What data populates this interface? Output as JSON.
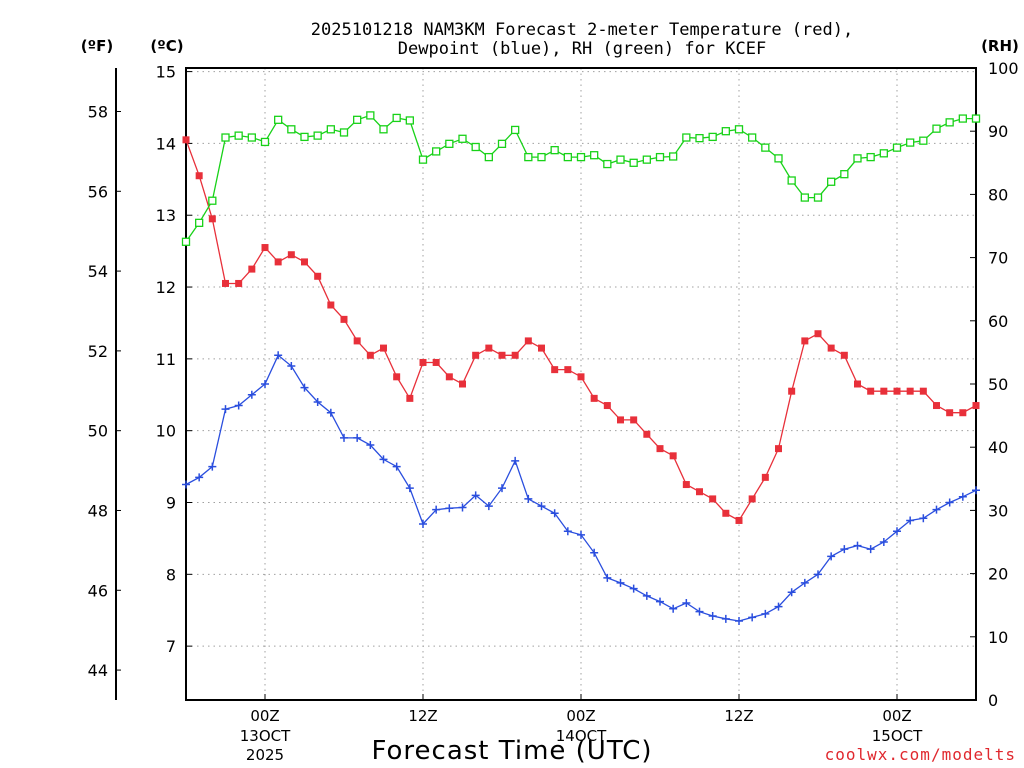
{
  "chart_data": {
    "type": "line",
    "title_line1": "2025101218 NAM3KM Forecast 2-meter Temperature (red),",
    "title_line2": "Dewpoint (blue), RH (green) for KCEF",
    "xlabel": "Forecast Time (UTC)",
    "credit": "coolwx.com/modelts",
    "units": {
      "left_f": "(ºF)",
      "left_c": "(ºC)",
      "right": "(RH)"
    },
    "x_range_hours": [
      0,
      60
    ],
    "celsius_axis": {
      "ylim": [
        6.25,
        15.05
      ],
      "ticks": [
        "7",
        "8",
        "9",
        "10",
        "11",
        "12",
        "13",
        "14",
        "15"
      ]
    },
    "fahrenheit_axis": {
      "ticks": [
        "44",
        "46",
        "48",
        "50",
        "52",
        "54",
        "56",
        "58"
      ]
    },
    "rh_axis": {
      "ylim": [
        0,
        100
      ],
      "ticks": [
        "0",
        "10",
        "20",
        "30",
        "40",
        "50",
        "60",
        "70",
        "80",
        "90",
        "100"
      ]
    },
    "x_ticks": [
      {
        "hour": 6,
        "label": "00Z",
        "date": "13OCT",
        "year": "2025"
      },
      {
        "hour": 18,
        "label": "12Z",
        "date": "",
        "year": ""
      },
      {
        "hour": 30,
        "label": "00Z",
        "date": "14OCT",
        "year": ""
      },
      {
        "hour": 42,
        "label": "12Z",
        "date": "",
        "year": ""
      },
      {
        "hour": 54,
        "label": "00Z",
        "date": "15OCT",
        "year": ""
      }
    ],
    "series": [
      {
        "name": "Temperature (red)",
        "axis": "celsius",
        "color": "#e8303a",
        "marker": "filled-square",
        "values": [
          14.05,
          13.55,
          12.95,
          12.05,
          12.05,
          12.25,
          12.55,
          12.35,
          12.45,
          12.35,
          12.15,
          11.75,
          11.55,
          11.25,
          11.05,
          11.15,
          10.75,
          10.45,
          10.95,
          10.95,
          10.75,
          10.65,
          11.05,
          11.15,
          11.05,
          11.05,
          11.25,
          11.15,
          10.85,
          10.85,
          10.75,
          10.45,
          10.35,
          10.15,
          10.15,
          9.95,
          9.75,
          9.65,
          9.25,
          9.15,
          9.05,
          8.85,
          8.75,
          9.05,
          9.35,
          9.75,
          10.55,
          11.25,
          11.35,
          11.15,
          11.05,
          10.65,
          10.55,
          10.55,
          10.55,
          10.55,
          10.55,
          10.35,
          10.25,
          10.25,
          10.35
        ]
      },
      {
        "name": "Dewpoint (blue)",
        "axis": "celsius",
        "color": "#2a4ede",
        "marker": "plus",
        "values": [
          9.25,
          9.35,
          9.5,
          10.3,
          10.35,
          10.5,
          10.65,
          11.05,
          10.9,
          10.6,
          10.4,
          10.25,
          9.9,
          9.9,
          9.8,
          9.6,
          9.5,
          9.2,
          8.7,
          8.9,
          8.92,
          8.93,
          9.1,
          8.95,
          9.2,
          9.58,
          9.05,
          8.95,
          8.85,
          8.6,
          8.55,
          8.3,
          7.95,
          7.88,
          7.8,
          7.7,
          7.62,
          7.52,
          7.6,
          7.48,
          7.42,
          7.38,
          7.35,
          7.4,
          7.45,
          7.55,
          7.75,
          7.88,
          8.0,
          8.25,
          8.35,
          8.4,
          8.35,
          8.45,
          8.6,
          8.75,
          8.78,
          8.9,
          9.0,
          9.08,
          9.17
        ]
      },
      {
        "name": "RH (green)",
        "axis": "rh",
        "color": "#18d218",
        "marker": "open-square",
        "values": [
          72.5,
          75.5,
          79,
          89,
          89.3,
          89,
          88.3,
          91.8,
          90.3,
          89.1,
          89.3,
          90.3,
          89.8,
          91.8,
          92.5,
          90.3,
          92.1,
          91.7,
          85.5,
          86.8,
          88,
          88.8,
          87.5,
          85.9,
          88,
          90.2,
          85.9,
          85.9,
          87,
          85.9,
          85.9,
          86.2,
          84.8,
          85.5,
          85,
          85.5,
          85.9,
          86,
          89,
          88.9,
          89.1,
          90,
          90.3,
          89,
          87.4,
          85.7,
          82.2,
          79.5,
          79.5,
          82,
          83.2,
          85.7,
          85.9,
          86.5,
          87.4,
          88.2,
          88.5,
          90.4,
          91.4,
          92,
          92
        ]
      }
    ]
  }
}
